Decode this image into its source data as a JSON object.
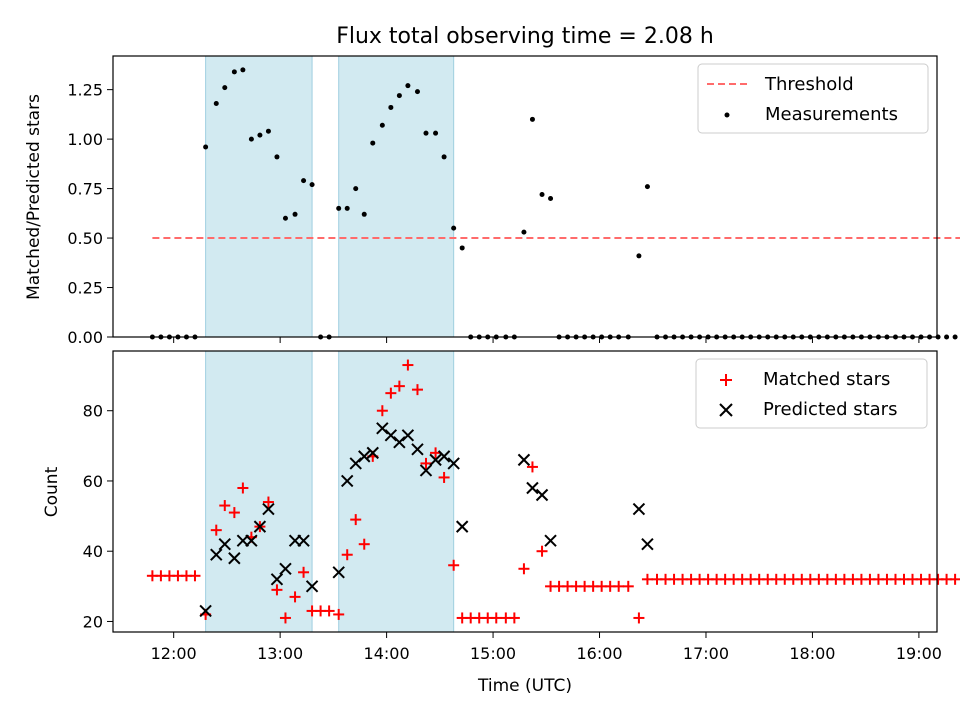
{
  "figure": {
    "title": "Flux total observing time = 2.08 h"
  },
  "x_axis": {
    "label": "Time (UTC)",
    "range_hours": [
      11.43,
      19.17
    ],
    "ticks": [
      {
        "value": 12,
        "label": "12:00"
      },
      {
        "value": 13,
        "label": "13:00"
      },
      {
        "value": 14,
        "label": "14:00"
      },
      {
        "value": 15,
        "label": "15:00"
      },
      {
        "value": 16,
        "label": "16:00"
      },
      {
        "value": 17,
        "label": "17:00"
      },
      {
        "value": 18,
        "label": "18:00"
      },
      {
        "value": 19,
        "label": "19:00"
      }
    ]
  },
  "chart_data": [
    {
      "type": "scatter",
      "ylabel": "Matched/Predicted stars",
      "ylim": [
        0,
        1.42
      ],
      "yticks": [
        0.0,
        0.25,
        0.5,
        0.75,
        1.0,
        1.25
      ],
      "ytick_labels": [
        "0.00",
        "0.25",
        "0.50",
        "0.75",
        "1.00",
        "1.25"
      ],
      "shaded_intervals": [
        [
          12.3,
          13.3
        ],
        [
          13.55,
          14.63
        ]
      ],
      "shade_color": "#add8e6",
      "threshold": {
        "name": "Threshold",
        "value": 0.5,
        "x_range": [
          11.8,
          19.4
        ],
        "color": "#ff6b6b",
        "style": "dashed"
      },
      "measurements": {
        "name": "Measurements",
        "color": "#000000",
        "points": [
          [
            11.8,
            0
          ],
          [
            11.88,
            0
          ],
          [
            11.96,
            0
          ],
          [
            12.04,
            0
          ],
          [
            12.12,
            0
          ],
          [
            12.2,
            0
          ],
          [
            12.3,
            0.96
          ],
          [
            12.4,
            1.18
          ],
          [
            12.48,
            1.26
          ],
          [
            12.57,
            1.34
          ],
          [
            12.65,
            1.35
          ],
          [
            12.73,
            1.0
          ],
          [
            12.81,
            1.02
          ],
          [
            12.89,
            1.04
          ],
          [
            12.97,
            0.91
          ],
          [
            13.05,
            0.6
          ],
          [
            13.14,
            0.62
          ],
          [
            13.22,
            0.79
          ],
          [
            13.3,
            0.77
          ],
          [
            13.38,
            0
          ],
          [
            13.46,
            0
          ],
          [
            13.55,
            0.65
          ],
          [
            13.63,
            0.65
          ],
          [
            13.71,
            0.75
          ],
          [
            13.79,
            0.62
          ],
          [
            13.87,
            0.98
          ],
          [
            13.96,
            1.07
          ],
          [
            14.04,
            1.16
          ],
          [
            14.12,
            1.22
          ],
          [
            14.2,
            1.27
          ],
          [
            14.29,
            1.24
          ],
          [
            14.37,
            1.03
          ],
          [
            14.46,
            1.03
          ],
          [
            14.54,
            0.91
          ],
          [
            14.63,
            0.55
          ],
          [
            14.71,
            0.45
          ],
          [
            14.79,
            0
          ],
          [
            14.87,
            0
          ],
          [
            14.95,
            0
          ],
          [
            15.03,
            0
          ],
          [
            15.12,
            0
          ],
          [
            15.2,
            0
          ],
          [
            15.29,
            0.53
          ],
          [
            15.37,
            1.1
          ],
          [
            15.46,
            0.72
          ],
          [
            15.54,
            0.7
          ],
          [
            15.62,
            0
          ],
          [
            15.7,
            0
          ],
          [
            15.78,
            0
          ],
          [
            15.86,
            0
          ],
          [
            15.94,
            0
          ],
          [
            16.02,
            0
          ],
          [
            16.1,
            0
          ],
          [
            16.18,
            0
          ],
          [
            16.27,
            0
          ],
          [
            16.37,
            0.41
          ],
          [
            16.45,
            0.76
          ],
          [
            16.54,
            0
          ],
          [
            16.62,
            0
          ],
          [
            16.7,
            0
          ],
          [
            16.78,
            0
          ],
          [
            16.86,
            0
          ],
          [
            16.94,
            0
          ],
          [
            17.02,
            0
          ],
          [
            17.1,
            0
          ],
          [
            17.18,
            0
          ],
          [
            17.26,
            0
          ],
          [
            17.34,
            0
          ],
          [
            17.42,
            0
          ],
          [
            17.5,
            0
          ],
          [
            17.58,
            0
          ],
          [
            17.66,
            0
          ],
          [
            17.74,
            0
          ],
          [
            17.82,
            0
          ],
          [
            17.9,
            0
          ],
          [
            17.98,
            0
          ],
          [
            18.06,
            0
          ],
          [
            18.14,
            0
          ],
          [
            18.22,
            0
          ],
          [
            18.3,
            0
          ],
          [
            18.38,
            0
          ],
          [
            18.46,
            0
          ],
          [
            18.54,
            0
          ],
          [
            18.62,
            0
          ],
          [
            18.7,
            0
          ],
          [
            18.78,
            0
          ],
          [
            18.86,
            0
          ],
          [
            18.94,
            0
          ],
          [
            19.02,
            0
          ],
          [
            19.1,
            0
          ],
          [
            19.18,
            0
          ],
          [
            19.26,
            0
          ],
          [
            19.34,
            0
          ]
        ]
      },
      "legend": {
        "placement": "upper-right",
        "entries": [
          "Threshold",
          "Measurements"
        ]
      }
    },
    {
      "type": "scatter",
      "ylabel": "Count",
      "ylim": [
        17,
        97
      ],
      "yticks": [
        20,
        40,
        60,
        80
      ],
      "ytick_labels": [
        "20",
        "40",
        "60",
        "80"
      ],
      "shaded_intervals": [
        [
          12.3,
          13.3
        ],
        [
          13.55,
          14.63
        ]
      ],
      "shade_color": "#add8e6",
      "series": [
        {
          "name": "Matched stars",
          "marker": "plus",
          "color": "#ff0000",
          "points": [
            [
              11.8,
              33
            ],
            [
              11.88,
              33
            ],
            [
              11.96,
              33
            ],
            [
              12.04,
              33
            ],
            [
              12.12,
              33
            ],
            [
              12.2,
              33
            ],
            [
              12.3,
              22
            ],
            [
              12.4,
              46
            ],
            [
              12.48,
              53
            ],
            [
              12.57,
              51
            ],
            [
              12.65,
              58
            ],
            [
              12.73,
              44
            ],
            [
              12.81,
              47
            ],
            [
              12.89,
              54
            ],
            [
              12.97,
              29
            ],
            [
              13.05,
              21
            ],
            [
              13.14,
              27
            ],
            [
              13.22,
              34
            ],
            [
              13.3,
              23
            ],
            [
              13.38,
              23
            ],
            [
              13.46,
              23
            ],
            [
              13.55,
              22
            ],
            [
              13.63,
              39
            ],
            [
              13.71,
              49
            ],
            [
              13.79,
              42
            ],
            [
              13.87,
              67
            ],
            [
              13.96,
              80
            ],
            [
              14.04,
              85
            ],
            [
              14.12,
              87
            ],
            [
              14.2,
              93
            ],
            [
              14.29,
              86
            ],
            [
              14.37,
              65
            ],
            [
              14.46,
              68
            ],
            [
              14.54,
              61
            ],
            [
              14.63,
              36
            ],
            [
              14.71,
              21
            ],
            [
              14.79,
              21
            ],
            [
              14.87,
              21
            ],
            [
              14.95,
              21
            ],
            [
              15.03,
              21
            ],
            [
              15.12,
              21
            ],
            [
              15.2,
              21
            ],
            [
              15.29,
              35
            ],
            [
              15.37,
              64
            ],
            [
              15.46,
              40
            ],
            [
              15.54,
              30
            ],
            [
              15.62,
              30
            ],
            [
              15.7,
              30
            ],
            [
              15.78,
              30
            ],
            [
              15.86,
              30
            ],
            [
              15.94,
              30
            ],
            [
              16.02,
              30
            ],
            [
              16.1,
              30
            ],
            [
              16.18,
              30
            ],
            [
              16.27,
              30
            ],
            [
              16.37,
              21
            ],
            [
              16.45,
              32
            ],
            [
              16.54,
              32
            ],
            [
              16.62,
              32
            ],
            [
              16.7,
              32
            ],
            [
              16.78,
              32
            ],
            [
              16.86,
              32
            ],
            [
              16.94,
              32
            ],
            [
              17.02,
              32
            ],
            [
              17.1,
              32
            ],
            [
              17.18,
              32
            ],
            [
              17.26,
              32
            ],
            [
              17.34,
              32
            ],
            [
              17.42,
              32
            ],
            [
              17.5,
              32
            ],
            [
              17.58,
              32
            ],
            [
              17.66,
              32
            ],
            [
              17.74,
              32
            ],
            [
              17.82,
              32
            ],
            [
              17.9,
              32
            ],
            [
              17.98,
              32
            ],
            [
              18.06,
              32
            ],
            [
              18.14,
              32
            ],
            [
              18.22,
              32
            ],
            [
              18.3,
              32
            ],
            [
              18.38,
              32
            ],
            [
              18.46,
              32
            ],
            [
              18.54,
              32
            ],
            [
              18.62,
              32
            ],
            [
              18.7,
              32
            ],
            [
              18.78,
              32
            ],
            [
              18.86,
              32
            ],
            [
              18.94,
              32
            ],
            [
              19.02,
              32
            ],
            [
              19.1,
              32
            ],
            [
              19.18,
              32
            ],
            [
              19.26,
              32
            ],
            [
              19.34,
              32
            ]
          ]
        },
        {
          "name": "Predicted stars",
          "marker": "x",
          "color": "#000000",
          "points": [
            [
              12.3,
              23
            ],
            [
              12.4,
              39
            ],
            [
              12.48,
              42
            ],
            [
              12.57,
              38
            ],
            [
              12.65,
              43
            ],
            [
              12.73,
              43
            ],
            [
              12.81,
              47
            ],
            [
              12.89,
              52
            ],
            [
              12.97,
              32
            ],
            [
              13.05,
              35
            ],
            [
              13.14,
              43
            ],
            [
              13.22,
              43
            ],
            [
              13.3,
              30
            ],
            [
              13.55,
              34
            ],
            [
              13.63,
              60
            ],
            [
              13.71,
              65
            ],
            [
              13.79,
              67
            ],
            [
              13.87,
              68
            ],
            [
              13.96,
              75
            ],
            [
              14.04,
              73
            ],
            [
              14.12,
              71
            ],
            [
              14.2,
              73
            ],
            [
              14.29,
              69
            ],
            [
              14.37,
              63
            ],
            [
              14.46,
              66
            ],
            [
              14.54,
              67
            ],
            [
              14.63,
              65
            ],
            [
              14.71,
              47
            ],
            [
              15.29,
              66
            ],
            [
              15.37,
              58
            ],
            [
              15.46,
              56
            ],
            [
              15.54,
              43
            ],
            [
              16.37,
              52
            ],
            [
              16.45,
              42
            ]
          ]
        }
      ],
      "legend": {
        "placement": "upper-right",
        "entries": [
          "Matched stars",
          "Predicted stars"
        ]
      }
    }
  ]
}
